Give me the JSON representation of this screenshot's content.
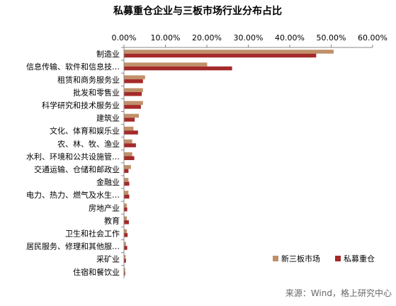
{
  "chart_data": {
    "type": "bar",
    "orientation": "horizontal",
    "title": "私募重仓企业与三板市场行业分布占比",
    "xlabel": "",
    "ylabel": "",
    "xlim": [
      0,
      0.6
    ],
    "xticks": [
      "0.00%",
      "10.00%",
      "20.00%",
      "30.00%",
      "40.00%",
      "50.00%",
      "60.00%"
    ],
    "x_axis_position": "top",
    "grid": false,
    "legend_position": "bottom-right",
    "categories": [
      "制造业",
      "信息传输、软件和信息技…",
      "租赁和商务服务业",
      "批发和零售业",
      "科学研究和技术服务业",
      "建筑业",
      "文化、体育和娱乐业",
      "农、林、牧、渔业",
      "水利、环境和公共设施管…",
      "交通运输、仓储和邮政业",
      "金融业",
      "电力、热力、燃气及水生…",
      "房地产业",
      "教育",
      "卫生和社会工作",
      "居民服务、修理和其他服…",
      "采矿业",
      "住宿和餐饮业"
    ],
    "series": [
      {
        "name": "新三板市场",
        "color": "#C0906A",
        "values": [
          0.505,
          0.2,
          0.05,
          0.045,
          0.045,
          0.035,
          0.022,
          0.019,
          0.019,
          0.016,
          0.01,
          0.01,
          0.006,
          0.006,
          0.006,
          0.004,
          0.003,
          0.002
        ]
      },
      {
        "name": "私募重仓",
        "color": "#A52A2A",
        "values": [
          0.463,
          0.26,
          0.045,
          0.042,
          0.04,
          0.025,
          0.033,
          0.028,
          0.024,
          0.01,
          0.012,
          0.012,
          0.007,
          0.011,
          0.008,
          0.007,
          0.004,
          0.002
        ]
      }
    ]
  },
  "source_note": "来源：Wind，格上研究中心"
}
